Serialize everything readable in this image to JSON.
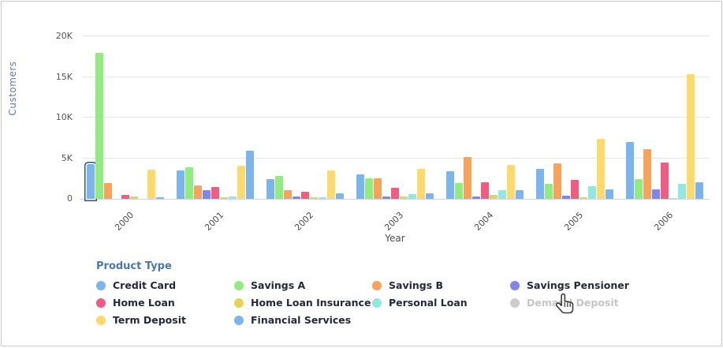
{
  "legend": {
    "title": "Product Type"
  },
  "chart_data": {
    "type": "bar",
    "title": "",
    "xlabel": "Year",
    "ylabel": "Customers",
    "ylim": [
      0,
      20000
    ],
    "y_ticks": [
      "0",
      "5K",
      "10K",
      "15K",
      "20K"
    ],
    "grid": "horizontal",
    "legend_position": "bottom",
    "categories": [
      "2000",
      "2001",
      "2002",
      "2003",
      "2004",
      "2005",
      "2006"
    ],
    "series": [
      {
        "name": "Credit Card",
        "color": "#7CB5EC",
        "hidden": false,
        "values": [
          4300,
          3500,
          2400,
          3000,
          3400,
          3700,
          7000
        ]
      },
      {
        "name": "Savings A",
        "color": "#90ED7D",
        "hidden": false,
        "values": [
          18000,
          3900,
          2850,
          2500,
          1900,
          1800,
          2400
        ]
      },
      {
        "name": "Savings B",
        "color": "#F7A35C",
        "hidden": false,
        "values": [
          1900,
          1650,
          1050,
          2550,
          5100,
          4350,
          6100
        ]
      },
      {
        "name": "Savings Pensioner",
        "color": "#8085E9",
        "hidden": false,
        "values": [
          0,
          1050,
          250,
          250,
          250,
          370,
          1200
        ]
      },
      {
        "name": "Home Loan",
        "color": "#F15C80",
        "hidden": false,
        "values": [
          450,
          1450,
          900,
          1400,
          2000,
          2350,
          4500
        ]
      },
      {
        "name": "Home Loan Insurance",
        "color": "#E4D354",
        "hidden": false,
        "values": [
          250,
          150,
          200,
          300,
          450,
          200,
          120
        ]
      },
      {
        "name": "Personal Loan",
        "color": "#91E8E1",
        "hidden": false,
        "values": [
          0,
          280,
          220,
          600,
          1050,
          1600,
          1800
        ]
      },
      {
        "name": "Demand Deposit",
        "color": "#CCCCCC",
        "hidden": true,
        "values": null
      },
      {
        "name": "Term Deposit",
        "color": "#FFDA6A",
        "hidden": false,
        "values": [
          3600,
          4100,
          3500,
          3700,
          4150,
          7400,
          15300
        ]
      },
      {
        "name": "Financial Services",
        "color": "#7CB5EC",
        "hidden": false,
        "values": [
          150,
          5900,
          650,
          700,
          1050,
          1170,
          2050
        ]
      }
    ],
    "selected_point": {
      "series": "Credit Card",
      "category": "2000"
    }
  }
}
